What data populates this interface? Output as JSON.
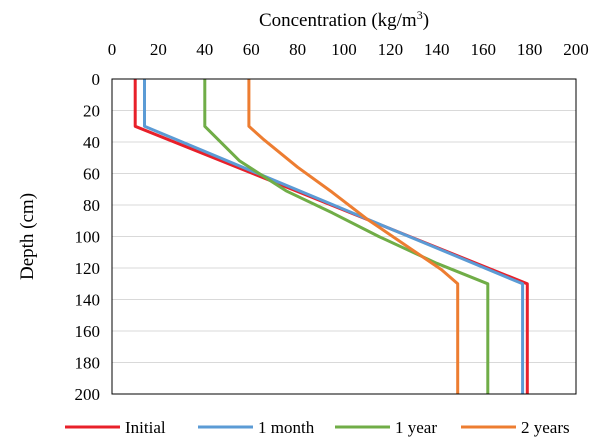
{
  "chart_data": {
    "type": "line",
    "title": "",
    "xlabel": "Concentration (kg/m³)",
    "xlabel_parts": {
      "main": "Concentration (kg/m",
      "superscript": "3",
      "close": ")"
    },
    "ylabel": "Depth (cm)",
    "xlim": [
      0,
      200
    ],
    "ylim": [
      0,
      200
    ],
    "y_inverted": true,
    "x_axis_position": "top",
    "x_ticks": [
      0,
      20,
      40,
      60,
      80,
      100,
      120,
      140,
      160,
      180,
      200
    ],
    "y_ticks": [
      0,
      20,
      40,
      60,
      80,
      100,
      120,
      140,
      160,
      180,
      200
    ],
    "grid": "horizontal",
    "legend_position": "bottom",
    "series": [
      {
        "name": "Initial",
        "color": "#e8202a",
        "points": [
          [
            10,
            0
          ],
          [
            10,
            30
          ],
          [
            179,
            130
          ],
          [
            179,
            200
          ]
        ]
      },
      {
        "name": "1 month",
        "color": "#5b9bd5",
        "points": [
          [
            14,
            0
          ],
          [
            14,
            30
          ],
          [
            177,
            130
          ],
          [
            177,
            200
          ]
        ]
      },
      {
        "name": "1 year",
        "color": "#70ad47",
        "points": [
          [
            40,
            0
          ],
          [
            40,
            30
          ],
          [
            55,
            52
          ],
          [
            75,
            71
          ],
          [
            95,
            85
          ],
          [
            115,
            100
          ],
          [
            140,
            117
          ],
          [
            162,
            130
          ],
          [
            162,
            200
          ]
        ]
      },
      {
        "name": "2 years",
        "color": "#ed7d31",
        "points": [
          [
            59,
            0
          ],
          [
            59,
            30
          ],
          [
            65,
            38
          ],
          [
            80,
            56
          ],
          [
            95,
            72
          ],
          [
            110,
            89
          ],
          [
            130,
            109
          ],
          [
            142,
            121
          ],
          [
            149,
            130
          ],
          [
            149,
            200
          ]
        ]
      }
    ]
  }
}
